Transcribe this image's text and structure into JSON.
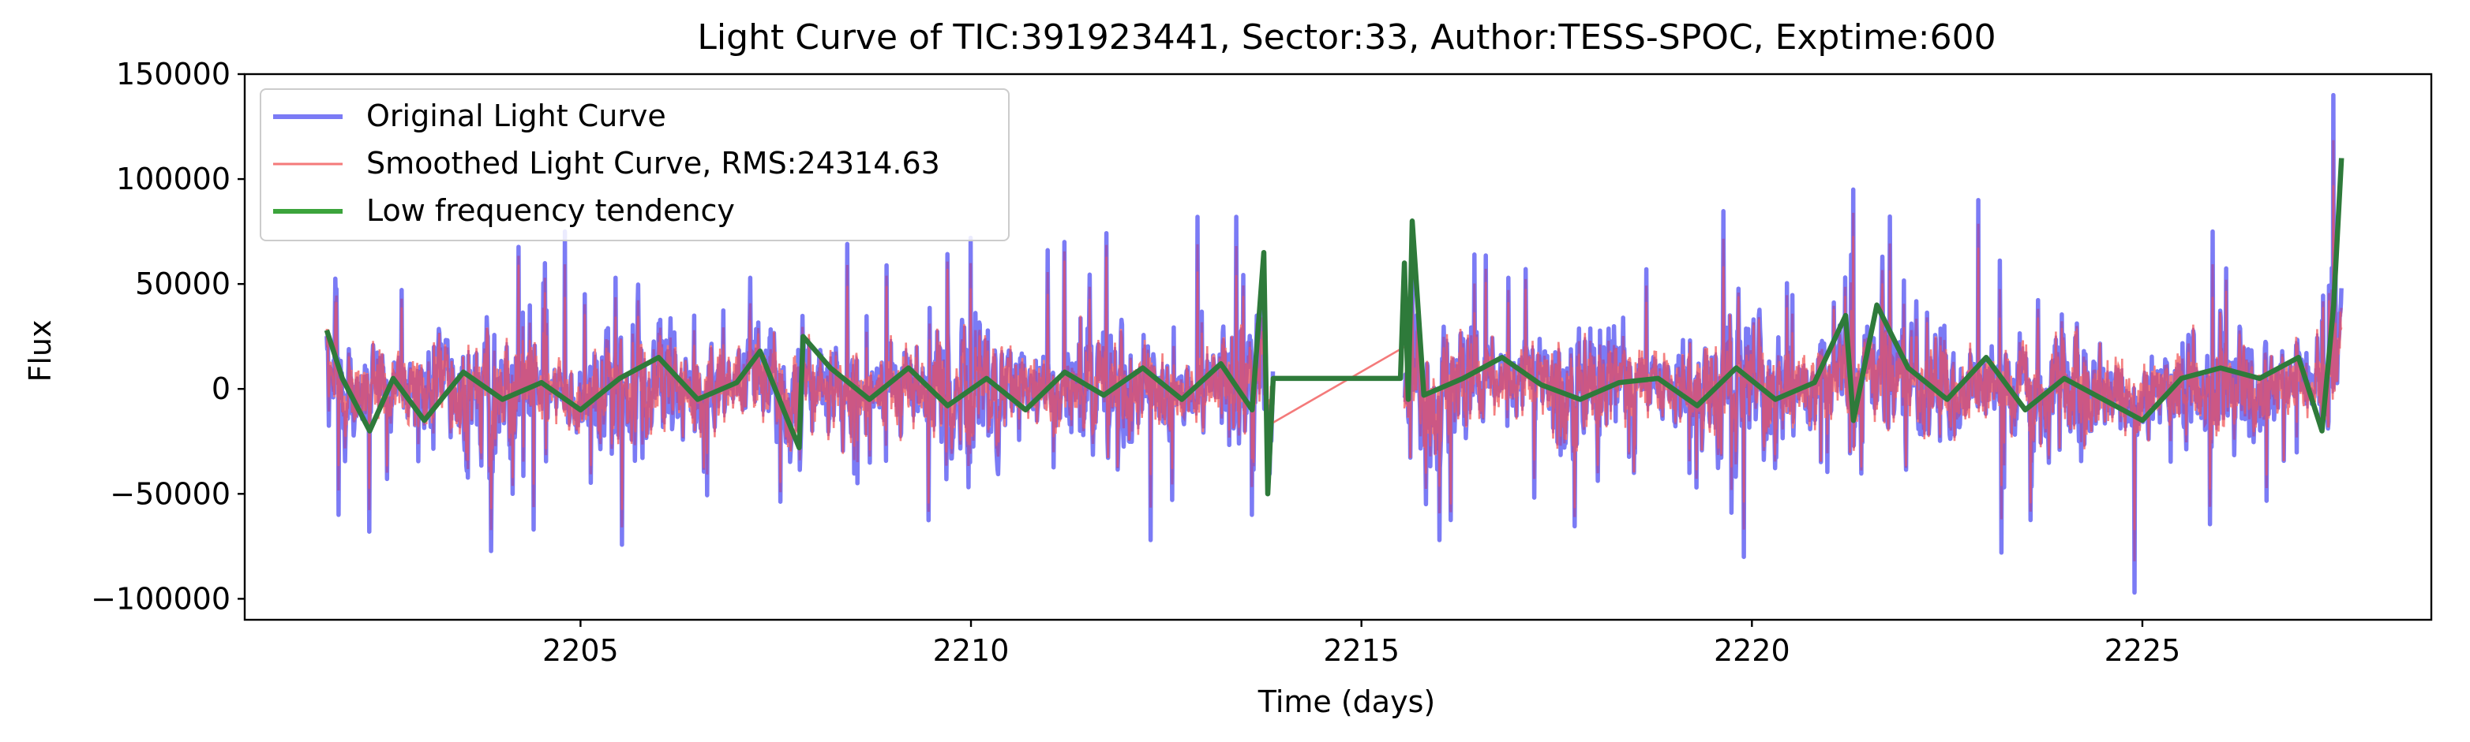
{
  "chart_data": {
    "type": "line",
    "title": "Light Curve of TIC:391923441, Sector:33, Author:TESS-SPOC, Exptime:600",
    "xlabel": "Time (days)",
    "ylabel": "Flux",
    "xlim": [
      2200.7,
      2228.7
    ],
    "ylim": [
      -110000,
      150000
    ],
    "xticks": [
      2205,
      2210,
      2215,
      2220,
      2225
    ],
    "yticks": [
      -100000,
      -50000,
      0,
      50000,
      100000,
      150000
    ],
    "xtick_labels": [
      "2205",
      "2210",
      "2215",
      "2220",
      "2225"
    ],
    "ytick_labels": [
      "−100000",
      "−50000",
      "0",
      "50000",
      "100000",
      "150000"
    ],
    "grid": false,
    "legend_position": "top-left",
    "segments": [
      {
        "start": 2201.75,
        "end": 2213.87
      },
      {
        "start": 2215.55,
        "end": 2227.55
      }
    ],
    "series": [
      {
        "name": "Original Light Curve",
        "color": "#7b7bf5",
        "style": "noisy",
        "typical_range": [
          -45000,
          45000
        ],
        "extremes": [
          {
            "x": 2201.9,
            "y": -60000
          },
          {
            "x": 2202.3,
            "y": -68000
          },
          {
            "x": 2204.4,
            "y": -67000
          },
          {
            "x": 2204.8,
            "y": 75000
          },
          {
            "x": 2210.0,
            "y": 72000
          },
          {
            "x": 2211.2,
            "y": 70000
          },
          {
            "x": 2212.3,
            "y": -72000
          },
          {
            "x": 2212.9,
            "y": 82000
          },
          {
            "x": 2213.4,
            "y": 82000
          },
          {
            "x": 2213.6,
            "y": -60000
          },
          {
            "x": 2216.0,
            "y": -72000
          },
          {
            "x": 2219.9,
            "y": -80000
          },
          {
            "x": 2221.3,
            "y": 95000
          },
          {
            "x": 2222.9,
            "y": 90000
          },
          {
            "x": 2223.2,
            "y": -78000
          },
          {
            "x": 2224.9,
            "y": -97000
          },
          {
            "x": 2225.9,
            "y": 75000
          },
          {
            "x": 2227.45,
            "y": 140000
          }
        ]
      },
      {
        "name": "Smoothed Light Curve, RMS:24314.63",
        "color": "#f47a7a",
        "style": "noisy",
        "typical_range": [
          -40000,
          40000
        ],
        "gap_line": [
          {
            "x": 2213.87,
            "y": -16000
          },
          {
            "x": 2215.55,
            "y": 20000
          }
        ]
      },
      {
        "name": "Low frequency tendency",
        "color": "#3ca43c",
        "style": "trend",
        "points": [
          {
            "x": 2201.75,
            "y": 28000
          },
          {
            "x": 2201.95,
            "y": 5000
          },
          {
            "x": 2202.3,
            "y": -20000
          },
          {
            "x": 2202.6,
            "y": 5000
          },
          {
            "x": 2203.0,
            "y": -15000
          },
          {
            "x": 2203.5,
            "y": 8000
          },
          {
            "x": 2204.0,
            "y": -5000
          },
          {
            "x": 2204.5,
            "y": 3000
          },
          {
            "x": 2205.0,
            "y": -10000
          },
          {
            "x": 2205.5,
            "y": 5000
          },
          {
            "x": 2206.0,
            "y": 15000
          },
          {
            "x": 2206.5,
            "y": -5000
          },
          {
            "x": 2207.0,
            "y": 3000
          },
          {
            "x": 2207.3,
            "y": 18000
          },
          {
            "x": 2207.6,
            "y": -10000
          },
          {
            "x": 2207.8,
            "y": -28000
          },
          {
            "x": 2207.85,
            "y": 25000
          },
          {
            "x": 2208.2,
            "y": 10000
          },
          {
            "x": 2208.7,
            "y": -5000
          },
          {
            "x": 2209.2,
            "y": 10000
          },
          {
            "x": 2209.7,
            "y": -8000
          },
          {
            "x": 2210.2,
            "y": 5000
          },
          {
            "x": 2210.7,
            "y": -10000
          },
          {
            "x": 2211.2,
            "y": 8000
          },
          {
            "x": 2211.7,
            "y": -3000
          },
          {
            "x": 2212.2,
            "y": 10000
          },
          {
            "x": 2212.7,
            "y": -5000
          },
          {
            "x": 2213.2,
            "y": 12000
          },
          {
            "x": 2213.6,
            "y": -10000
          },
          {
            "x": 2213.75,
            "y": 65000
          },
          {
            "x": 2213.8,
            "y": -50000
          },
          {
            "x": 2213.87,
            "y": 5000
          },
          {
            "x": 2215.5,
            "y": 5000
          },
          {
            "x": 2215.55,
            "y": 60000
          },
          {
            "x": 2215.6,
            "y": -5000
          },
          {
            "x": 2215.65,
            "y": 80000
          },
          {
            "x": 2215.8,
            "y": -3000
          },
          {
            "x": 2216.3,
            "y": 5000
          },
          {
            "x": 2216.8,
            "y": 15000
          },
          {
            "x": 2217.3,
            "y": 2000
          },
          {
            "x": 2217.8,
            "y": -5000
          },
          {
            "x": 2218.3,
            "y": 3000
          },
          {
            "x": 2218.8,
            "y": 5000
          },
          {
            "x": 2219.3,
            "y": -8000
          },
          {
            "x": 2219.8,
            "y": 10000
          },
          {
            "x": 2220.3,
            "y": -5000
          },
          {
            "x": 2220.8,
            "y": 3000
          },
          {
            "x": 2221.2,
            "y": 35000
          },
          {
            "x": 2221.3,
            "y": -15000
          },
          {
            "x": 2221.6,
            "y": 40000
          },
          {
            "x": 2222.0,
            "y": 10000
          },
          {
            "x": 2222.5,
            "y": -5000
          },
          {
            "x": 2223.0,
            "y": 15000
          },
          {
            "x": 2223.5,
            "y": -10000
          },
          {
            "x": 2224.0,
            "y": 5000
          },
          {
            "x": 2224.5,
            "y": -5000
          },
          {
            "x": 2225.0,
            "y": -15000
          },
          {
            "x": 2225.5,
            "y": 5000
          },
          {
            "x": 2226.0,
            "y": 10000
          },
          {
            "x": 2226.5,
            "y": 5000
          },
          {
            "x": 2227.0,
            "y": 15000
          },
          {
            "x": 2227.3,
            "y": -20000
          },
          {
            "x": 2227.45,
            "y": 40000
          },
          {
            "x": 2227.55,
            "y": 110000
          }
        ]
      }
    ]
  }
}
